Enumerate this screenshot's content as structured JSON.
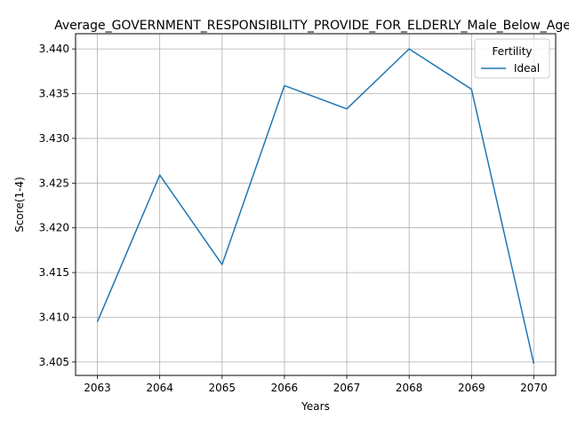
{
  "chart_data": {
    "type": "line",
    "title": "Average_GOVERNMENT_RESPONSIBILITY_PROVIDE_FOR_ELDERLY_Male_Below_Age_",
    "xlabel": "Years",
    "ylabel": "Score(1-4)",
    "x": [
      2063,
      2064,
      2065,
      2066,
      2067,
      2068,
      2069,
      2070
    ],
    "x_ticks": [
      "2063",
      "2064",
      "2065",
      "2066",
      "2067",
      "2068",
      "2069",
      "2070"
    ],
    "y_ticks": [
      "3.405",
      "3.410",
      "3.415",
      "3.420",
      "3.425",
      "3.430",
      "3.435",
      "3.440"
    ],
    "y_tick_values": [
      3.405,
      3.41,
      3.415,
      3.42,
      3.425,
      3.43,
      3.435,
      3.44
    ],
    "xlim": [
      2062.65,
      2070.35
    ],
    "ylim": [
      3.4035,
      3.4417
    ],
    "grid": true,
    "legend": {
      "title": "Fertility",
      "placement": "top-right"
    },
    "series": [
      {
        "name": "Ideal",
        "color": "#1f77b4",
        "values": [
          3.4095,
          3.4259,
          3.4159,
          3.4359,
          3.4333,
          3.44,
          3.4355,
          3.4048
        ]
      }
    ]
  }
}
